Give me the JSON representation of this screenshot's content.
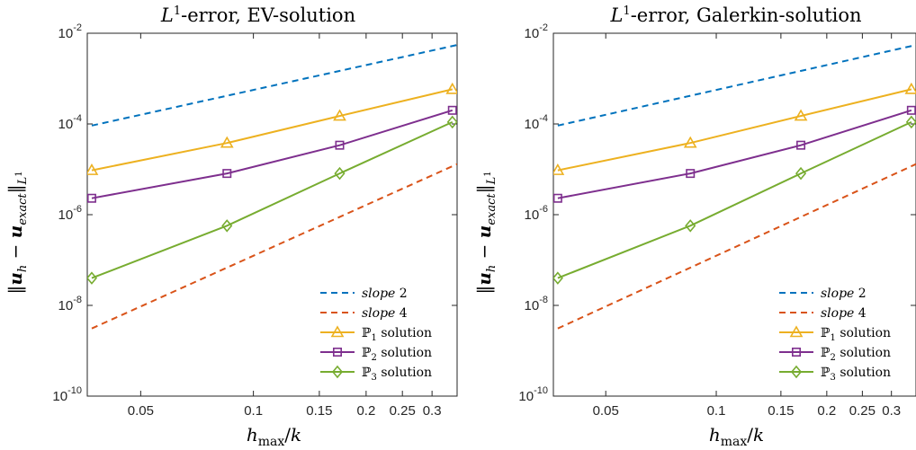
{
  "chart_data": [
    {
      "type": "line",
      "title": "L1-error, EV-solution",
      "title_parts": {
        "prefix": "L",
        "superscript": "1",
        "suffix": "-error, EV-solution"
      },
      "xlabel": "h_max/k",
      "ylabel": "||u_h − u_exact||_L1",
      "xscale": "log",
      "yscale": "log",
      "xlim": [
        0.036,
        0.35
      ],
      "ylim": [
        1e-10,
        0.01
      ],
      "x_ticks": [
        0.05,
        0.1,
        0.15,
        0.2,
        0.25,
        0.3
      ],
      "x_tick_labels": [
        "0.05",
        "0.1",
        "0.15",
        "0.2",
        "0.25",
        "0.3"
      ],
      "y_ticks": [
        1e-10,
        1e-08,
        1e-06,
        0.0001,
        0.01
      ],
      "y_tick_labels": [
        {
          "base": "10",
          "exp": "-10"
        },
        {
          "base": "10",
          "exp": "-8"
        },
        {
          "base": "10",
          "exp": "-6"
        },
        {
          "base": "10",
          "exp": "-4"
        },
        {
          "base": "10",
          "exp": "-2"
        }
      ],
      "grid": false,
      "legend_position": "bottom-right",
      "series": [
        {
          "name": "slope 2",
          "legend_label": {
            "italic": "slope",
            "rest": " 2"
          },
          "color": "#0072BD",
          "style": "dashed",
          "marker": "none",
          "x": [
            0.037,
            0.35
          ],
          "y": [
            9.2e-05,
            0.0055
          ]
        },
        {
          "name": "slope 4",
          "legend_label": {
            "italic": "slope",
            "rest": " 4"
          },
          "color": "#D95319",
          "style": "dashed",
          "marker": "none",
          "x": [
            0.037,
            0.35
          ],
          "y": [
            3.1e-09,
            1.3e-05
          ]
        },
        {
          "name": "P1 solution",
          "legend_label": {
            "symbol": "ℙ",
            "sub": "1",
            "rest": " solution"
          },
          "color": "#EDB120",
          "style": "solid",
          "marker": "triangle",
          "x": [
            0.037,
            0.085,
            0.17,
            0.34
          ],
          "y": [
            9.5e-06,
            3.8e-05,
            0.00015,
            0.00058
          ]
        },
        {
          "name": "P2 solution",
          "legend_label": {
            "symbol": "ℙ",
            "sub": "2",
            "rest": " solution"
          },
          "color": "#7E2F8E",
          "style": "solid",
          "marker": "square",
          "x": [
            0.037,
            0.085,
            0.17,
            0.34
          ],
          "y": [
            2.3e-06,
            8.1e-06,
            3.4e-05,
            0.0002
          ]
        },
        {
          "name": "P3 solution",
          "legend_label": {
            "symbol": "ℙ",
            "sub": "3",
            "rest": " solution"
          },
          "color": "#77AC30",
          "style": "solid",
          "marker": "diamond",
          "x": [
            0.037,
            0.085,
            0.17,
            0.34
          ],
          "y": [
            4e-08,
            5.7e-07,
            8.1e-06,
            0.00011
          ]
        }
      ]
    },
    {
      "type": "line",
      "title": "L1-error, Galerkin-solution",
      "title_parts": {
        "prefix": "L",
        "superscript": "1",
        "suffix": "-error, Galerkin-solution"
      },
      "xlabel": "h_max/k",
      "ylabel": "||u_h − u_exact||_L1",
      "xscale": "log",
      "yscale": "log",
      "xlim": [
        0.036,
        0.35
      ],
      "ylim": [
        1e-10,
        0.01
      ],
      "x_ticks": [
        0.05,
        0.1,
        0.15,
        0.2,
        0.25,
        0.3
      ],
      "x_tick_labels": [
        "0.05",
        "0.1",
        "0.15",
        "0.2",
        "0.25",
        "0.3"
      ],
      "y_ticks": [
        1e-10,
        1e-08,
        1e-06,
        0.0001,
        0.01
      ],
      "y_tick_labels": [
        {
          "base": "10",
          "exp": "-10"
        },
        {
          "base": "10",
          "exp": "-8"
        },
        {
          "base": "10",
          "exp": "-6"
        },
        {
          "base": "10",
          "exp": "-4"
        },
        {
          "base": "10",
          "exp": "-2"
        }
      ],
      "grid": false,
      "legend_position": "bottom-right",
      "series": [
        {
          "name": "slope 2",
          "legend_label": {
            "italic": "slope",
            "rest": " 2"
          },
          "color": "#0072BD",
          "style": "dashed",
          "marker": "none",
          "x": [
            0.037,
            0.35
          ],
          "y": [
            9.2e-05,
            0.0055
          ]
        },
        {
          "name": "slope 4",
          "legend_label": {
            "italic": "slope",
            "rest": " 4"
          },
          "color": "#D95319",
          "style": "dashed",
          "marker": "none",
          "x": [
            0.037,
            0.35
          ],
          "y": [
            3.1e-09,
            1.3e-05
          ]
        },
        {
          "name": "P1 solution",
          "legend_label": {
            "symbol": "ℙ",
            "sub": "1",
            "rest": " solution"
          },
          "color": "#EDB120",
          "style": "solid",
          "marker": "triangle",
          "x": [
            0.037,
            0.085,
            0.17,
            0.34
          ],
          "y": [
            9.5e-06,
            3.8e-05,
            0.00015,
            0.00058
          ]
        },
        {
          "name": "P2 solution",
          "legend_label": {
            "symbol": "ℙ",
            "sub": "2",
            "rest": " solution"
          },
          "color": "#7E2F8E",
          "style": "solid",
          "marker": "square",
          "x": [
            0.037,
            0.085,
            0.17,
            0.34
          ],
          "y": [
            2.3e-06,
            8.1e-06,
            3.4e-05,
            0.0002
          ]
        },
        {
          "name": "P3 solution",
          "legend_label": {
            "symbol": "ℙ",
            "sub": "3",
            "rest": " solution"
          },
          "color": "#77AC30",
          "style": "solid",
          "marker": "diamond",
          "x": [
            0.037,
            0.085,
            0.17,
            0.34
          ],
          "y": [
            4e-08,
            5.7e-07,
            8.1e-06,
            0.00011
          ]
        }
      ]
    }
  ]
}
